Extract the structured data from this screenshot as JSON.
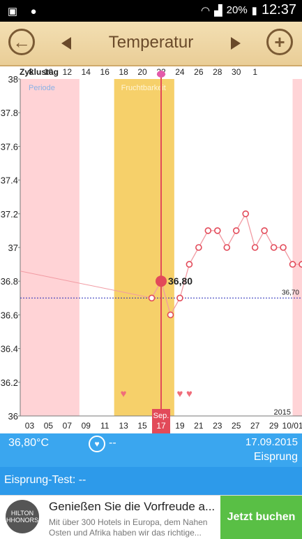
{
  "statusbar": {
    "battery": "20%",
    "time": "12:37",
    "icons": [
      "photo-icon",
      "alert-icon",
      "wifi-icon",
      "signal-icon",
      "battery-icon"
    ]
  },
  "toolbar": {
    "title": "Temperatur",
    "back_icon": "arrow-left-icon",
    "add_icon": "plus-icon"
  },
  "chart_data": {
    "type": "line",
    "cycle_label": "Zyklustag",
    "cycle_days_top": [
      "8",
      "10",
      "12",
      "14",
      "16",
      "18",
      "20",
      "22",
      "24",
      "26",
      "28",
      "30",
      "1"
    ],
    "dates_bottom": [
      "03",
      "05",
      "07",
      "09",
      "11",
      "13",
      "15",
      "17",
      "19",
      "21",
      "23",
      "25",
      "27",
      "29",
      "10/01"
    ],
    "current_month": "Sep.",
    "year": "2015",
    "ylim": [
      36,
      38
    ],
    "y_ticks": [
      "36",
      "36.2",
      "36.4",
      "36.6",
      "36.8",
      "37",
      "37.2",
      "37.4",
      "37.6",
      "37.8",
      "38"
    ],
    "period_label": "Periode",
    "fertile_label": "Fruchtbarkeit",
    "coverline": "36,70",
    "selected_value": "36,80",
    "x_start_day": 2,
    "x_end_day": 32,
    "periods": [
      [
        2,
        8.3
      ],
      [
        31,
        32
      ]
    ],
    "fertile": [
      12,
      18.4
    ],
    "selected_day": 17,
    "series": [
      {
        "x": [
          16,
          17,
          18,
          19,
          20,
          21,
          22,
          23,
          24,
          25,
          26,
          27,
          28,
          29,
          30,
          31,
          32
        ],
        "y": [
          36.7,
          36.8,
          36.6,
          36.7,
          36.9,
          37.0,
          37.1,
          37.1,
          37.0,
          37.1,
          37.2,
          37.0,
          37.1,
          37.0,
          37.0,
          36.9,
          36.9
        ]
      }
    ],
    "hearts_days": [
      13,
      19,
      20
    ],
    "colors": {
      "line": "#f29ba3",
      "period": "#ffd3d6",
      "fertile": "#f6d06a",
      "selected": "#e24a59",
      "coverline": "#2229b8"
    }
  },
  "summary": {
    "temp": "36,80°C",
    "heart_icon": "heart-icon",
    "sex": "--",
    "date": "17.09.2015",
    "event": "Eisprung"
  },
  "ovulation_test": {
    "label": "Eisprung-Test: --"
  },
  "ad": {
    "logo": "HILTON HHONORS",
    "headline": "Genießen Sie die Vorfreude a...",
    "body": "Mit über 300 Hotels in Europa, dem Nahen Osten und Afrika haben wir das richtige...",
    "cta": "Jetzt buchen"
  }
}
